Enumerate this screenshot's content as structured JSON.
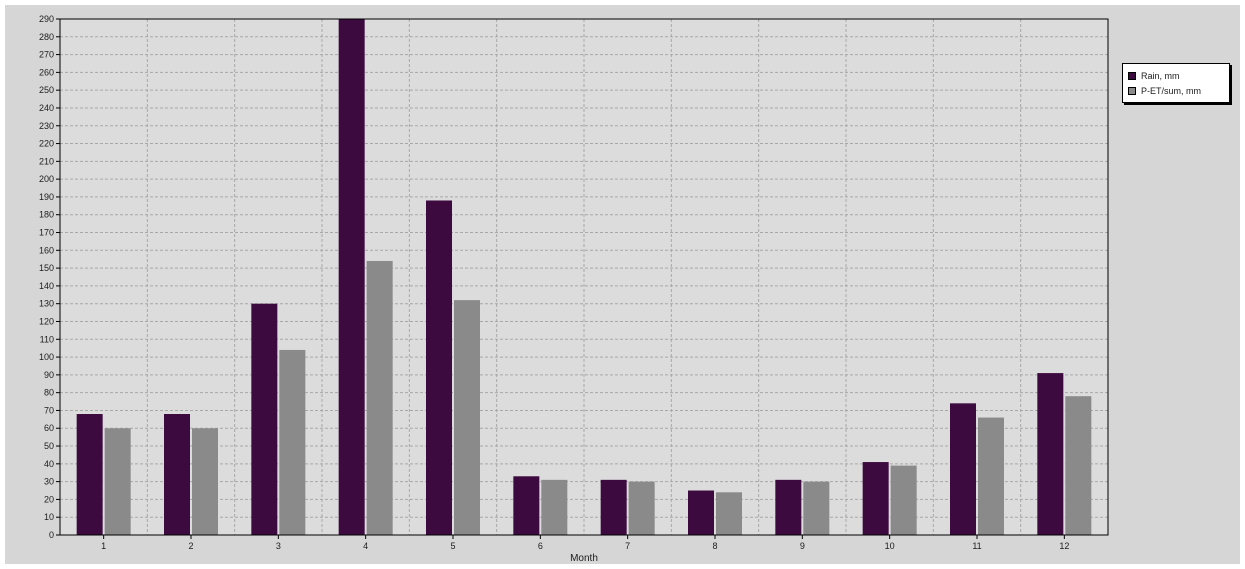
{
  "chart_data": {
    "type": "bar",
    "title": "",
    "xlabel": "Month",
    "ylabel": "",
    "categories": [
      "1",
      "2",
      "3",
      "4",
      "5",
      "6",
      "7",
      "8",
      "9",
      "10",
      "11",
      "12"
    ],
    "series": [
      {
        "name": "Rain, mm",
        "color": "#3d0a40",
        "values": [
          68,
          68,
          130,
          290,
          188,
          33,
          31,
          25,
          31,
          41,
          74,
          91
        ]
      },
      {
        "name": "P-ET/sum, mm",
        "color": "#8a8a8a",
        "values": [
          60,
          60,
          104,
          154,
          132,
          31,
          30,
          24,
          30,
          39,
          66,
          78
        ]
      }
    ],
    "y_ticks": [
      "0",
      "10",
      "20",
      "30",
      "40",
      "50",
      "60",
      "70",
      "80",
      "90",
      "100",
      "110",
      "120",
      "130",
      "140",
      "150",
      "160",
      "170",
      "180",
      "190",
      "200",
      "210",
      "220",
      "230",
      "240",
      "250",
      "260",
      "270",
      "280",
      "290"
    ],
    "ylim": [
      0,
      290
    ],
    "grid": true,
    "legend_position": "top-right, outside plot"
  }
}
